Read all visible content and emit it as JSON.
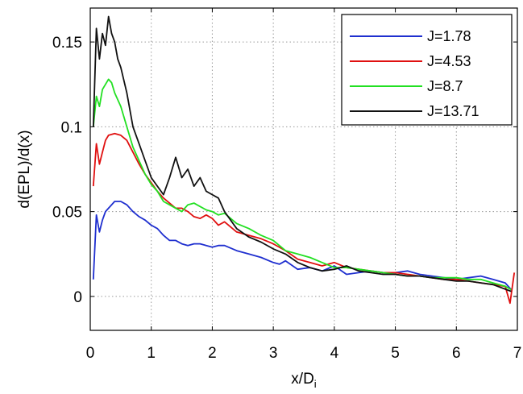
{
  "chart_data": {
    "type": "line",
    "xlabel": "x/D",
    "xlabel_sub": "i",
    "ylabel": "d(EPL)/d(x)",
    "xlim": [
      0,
      7
    ],
    "ylim": [
      -0.02,
      0.17
    ],
    "xticks": [
      0,
      1,
      2,
      3,
      4,
      5,
      6,
      7
    ],
    "xtick_labels": [
      "0",
      "1",
      "2",
      "3",
      "4",
      "5",
      "6",
      "7"
    ],
    "yticks": [
      0,
      0.05,
      0.1,
      0.15
    ],
    "ytick_labels": [
      "0",
      "0.05",
      "0.1",
      "0.15"
    ],
    "grid": true,
    "legend_position": "top-right",
    "series": [
      {
        "name": "J=1.78",
        "color": "#1f2fcf",
        "x": [
          0.05,
          0.1,
          0.15,
          0.2,
          0.25,
          0.3,
          0.4,
          0.5,
          0.6,
          0.7,
          0.8,
          0.9,
          1.0,
          1.1,
          1.2,
          1.3,
          1.4,
          1.5,
          1.6,
          1.7,
          1.8,
          1.9,
          2.0,
          2.1,
          2.2,
          2.4,
          2.6,
          2.8,
          3.0,
          3.1,
          3.2,
          3.4,
          3.6,
          3.8,
          4.0,
          4.2,
          4.4,
          4.6,
          4.8,
          5.0,
          5.2,
          5.4,
          5.6,
          5.8,
          6.0,
          6.2,
          6.4,
          6.6,
          6.8,
          6.9
        ],
        "y": [
          0.01,
          0.048,
          0.038,
          0.045,
          0.05,
          0.052,
          0.056,
          0.056,
          0.054,
          0.05,
          0.047,
          0.045,
          0.042,
          0.04,
          0.036,
          0.033,
          0.033,
          0.031,
          0.03,
          0.031,
          0.031,
          0.03,
          0.029,
          0.03,
          0.03,
          0.027,
          0.025,
          0.023,
          0.02,
          0.019,
          0.021,
          0.016,
          0.017,
          0.015,
          0.018,
          0.013,
          0.014,
          0.015,
          0.014,
          0.014,
          0.015,
          0.013,
          0.012,
          0.011,
          0.01,
          0.011,
          0.012,
          0.01,
          0.008,
          0.004
        ]
      },
      {
        "name": "J=4.53",
        "color": "#e01010",
        "x": [
          0.05,
          0.1,
          0.15,
          0.2,
          0.25,
          0.3,
          0.4,
          0.5,
          0.6,
          0.7,
          0.8,
          0.9,
          1.0,
          1.1,
          1.2,
          1.3,
          1.4,
          1.5,
          1.6,
          1.7,
          1.8,
          1.9,
          2.0,
          2.1,
          2.2,
          2.4,
          2.6,
          2.8,
          3.0,
          3.2,
          3.4,
          3.6,
          3.8,
          4.0,
          4.2,
          4.4,
          4.6,
          4.8,
          5.0,
          5.2,
          5.4,
          5.6,
          5.8,
          6.0,
          6.2,
          6.4,
          6.6,
          6.8,
          6.88,
          6.95
        ],
        "y": [
          0.065,
          0.09,
          0.078,
          0.085,
          0.092,
          0.095,
          0.096,
          0.095,
          0.092,
          0.085,
          0.078,
          0.072,
          0.067,
          0.062,
          0.058,
          0.055,
          0.052,
          0.052,
          0.05,
          0.047,
          0.046,
          0.048,
          0.046,
          0.042,
          0.044,
          0.038,
          0.036,
          0.034,
          0.031,
          0.027,
          0.022,
          0.02,
          0.018,
          0.02,
          0.017,
          0.016,
          0.015,
          0.014,
          0.014,
          0.013,
          0.012,
          0.011,
          0.01,
          0.01,
          0.009,
          0.008,
          0.007,
          0.006,
          -0.004,
          0.014
        ]
      },
      {
        "name": "J=8.7",
        "color": "#22e022",
        "x": [
          0.05,
          0.1,
          0.15,
          0.2,
          0.25,
          0.3,
          0.35,
          0.4,
          0.5,
          0.6,
          0.7,
          0.8,
          0.9,
          1.0,
          1.1,
          1.2,
          1.3,
          1.4,
          1.5,
          1.6,
          1.7,
          1.8,
          1.9,
          2.0,
          2.1,
          2.2,
          2.4,
          2.6,
          2.8,
          3.0,
          3.2,
          3.4,
          3.6,
          3.8,
          4.0,
          4.2,
          4.4,
          4.6,
          4.8,
          5.0,
          5.2,
          5.4,
          5.6,
          5.8,
          6.0,
          6.2,
          6.4,
          6.6,
          6.8,
          6.9
        ],
        "y": [
          0.1,
          0.118,
          0.112,
          0.122,
          0.125,
          0.128,
          0.126,
          0.12,
          0.112,
          0.1,
          0.088,
          0.08,
          0.072,
          0.066,
          0.062,
          0.056,
          0.054,
          0.052,
          0.05,
          0.054,
          0.055,
          0.053,
          0.051,
          0.05,
          0.048,
          0.049,
          0.043,
          0.04,
          0.036,
          0.033,
          0.027,
          0.025,
          0.023,
          0.02,
          0.017,
          0.017,
          0.016,
          0.015,
          0.014,
          0.013,
          0.012,
          0.012,
          0.011,
          0.011,
          0.011,
          0.01,
          0.01,
          0.008,
          0.006,
          0.004
        ]
      },
      {
        "name": "J=13.71",
        "color": "#111111",
        "x": [
          0.05,
          0.1,
          0.15,
          0.2,
          0.25,
          0.3,
          0.35,
          0.4,
          0.45,
          0.5,
          0.6,
          0.7,
          0.8,
          0.9,
          1.0,
          1.1,
          1.2,
          1.3,
          1.4,
          1.5,
          1.6,
          1.7,
          1.8,
          1.9,
          2.0,
          2.1,
          2.2,
          2.4,
          2.6,
          2.8,
          3.0,
          3.2,
          3.4,
          3.6,
          3.8,
          4.0,
          4.2,
          4.4,
          4.6,
          4.8,
          5.0,
          5.2,
          5.4,
          5.6,
          5.8,
          6.0,
          6.2,
          6.4,
          6.6,
          6.9
        ],
        "y": [
          0.1,
          0.158,
          0.14,
          0.155,
          0.148,
          0.165,
          0.155,
          0.15,
          0.14,
          0.135,
          0.12,
          0.1,
          0.09,
          0.08,
          0.07,
          0.065,
          0.06,
          0.07,
          0.082,
          0.07,
          0.075,
          0.065,
          0.07,
          0.062,
          0.06,
          0.058,
          0.05,
          0.04,
          0.035,
          0.032,
          0.028,
          0.025,
          0.02,
          0.017,
          0.015,
          0.016,
          0.018,
          0.015,
          0.014,
          0.013,
          0.013,
          0.012,
          0.012,
          0.011,
          0.01,
          0.009,
          0.009,
          0.008,
          0.007,
          0.003
        ]
      }
    ]
  }
}
